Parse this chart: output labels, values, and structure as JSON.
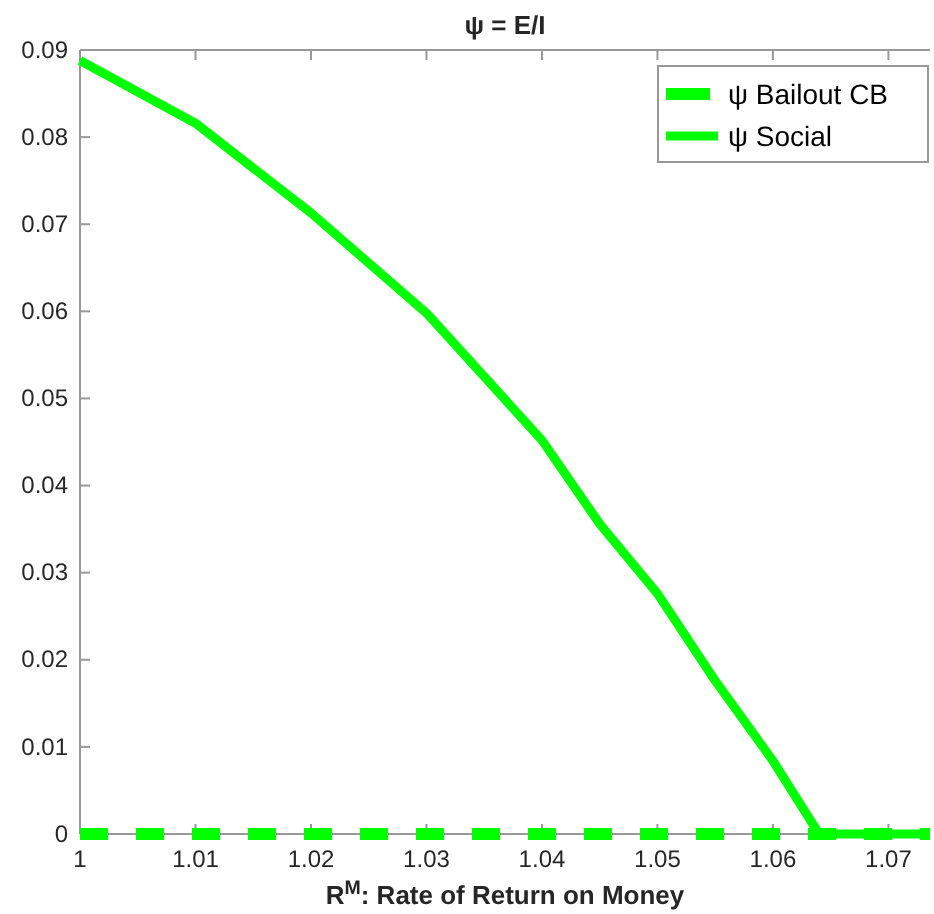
{
  "chart_data": {
    "type": "line",
    "title": "ψ = E/I",
    "xlabel": "R$^{M}$: Rate of Return on Money",
    "xlim": [
      1,
      1.0736
    ],
    "xticks": [
      1,
      1.01,
      1.02,
      1.03,
      1.04,
      1.05,
      1.06,
      1.07
    ],
    "ylim": [
      0,
      0.09
    ],
    "yticks": [
      0,
      0.01,
      0.02,
      0.03,
      0.04,
      0.05,
      0.06,
      0.07,
      0.08,
      0.09
    ],
    "grid": false,
    "legend": "top right",
    "marker": "none",
    "series": [
      {
        "name": "ψ Bailout CB",
        "color": "#00ff00",
        "line_style": "dashed",
        "x": [
          1,
          1.0736
        ],
        "values": [
          0,
          0
        ]
      },
      {
        "name": "ψ Social",
        "color": "#00ff00",
        "line_style": "solid",
        "x": [
          1,
          1.01,
          1.02,
          1.03,
          1.04,
          1.045,
          1.05,
          1.055,
          1.06,
          1.064,
          1.0736
        ],
        "values": [
          0.0888,
          0.0816,
          0.0713,
          0.0598,
          0.0452,
          0.0356,
          0.0276,
          0.0176,
          0.0084,
          0,
          0
        ]
      }
    ]
  }
}
